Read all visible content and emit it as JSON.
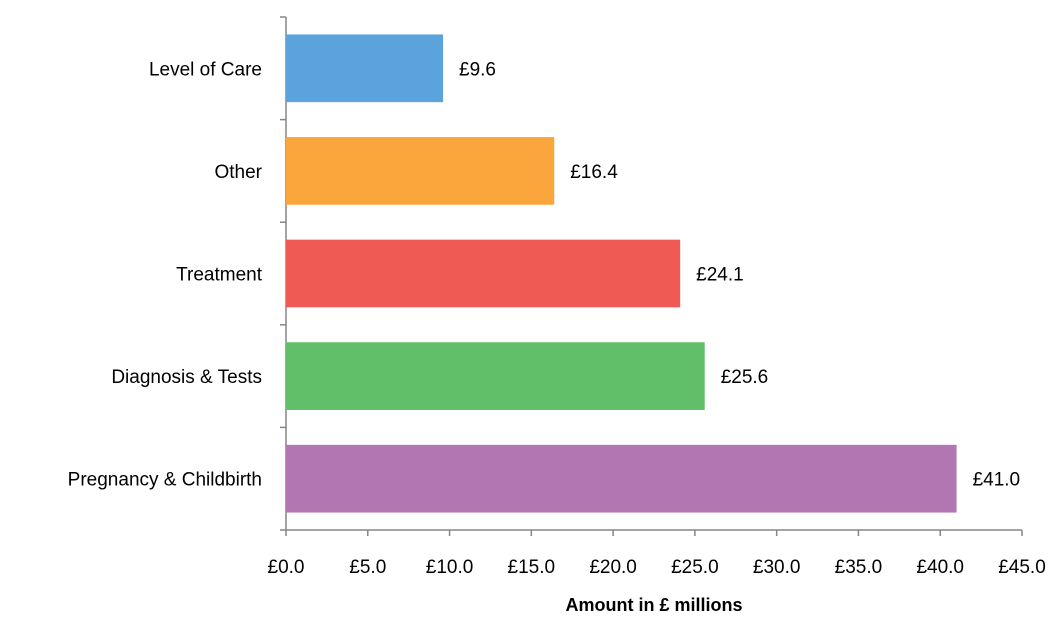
{
  "chart_data": {
    "type": "hbar",
    "categories": [
      "Level of Care",
      "Other",
      "Treatment",
      "Diagnosis & Tests",
      "Pregnancy & Childbirth"
    ],
    "values": [
      9.6,
      16.4,
      24.1,
      25.6,
      41.0
    ],
    "value_labels": [
      "£9.6",
      "£16.4",
      "£24.1",
      "£25.6",
      "£41.0"
    ],
    "colors": [
      "#5ba3dc",
      "#fba63c",
      "#f05a55",
      "#61be69",
      "#b276b2"
    ],
    "xlabel": "Amount in £ millions",
    "xlim": [
      0,
      45
    ],
    "xticks": [
      {
        "value": 0,
        "label": "£0.0"
      },
      {
        "value": 5,
        "label": "£5.0"
      },
      {
        "value": 10,
        "label": "£10.0"
      },
      {
        "value": 15,
        "label": "£15.0"
      },
      {
        "value": 20,
        "label": "£20.0"
      },
      {
        "value": 25,
        "label": "£25.0"
      },
      {
        "value": 30,
        "label": "£30.0"
      },
      {
        "value": 35,
        "label": "£35.0"
      },
      {
        "value": 40,
        "label": "£40.0"
      },
      {
        "value": 45,
        "label": "£45.0"
      }
    ],
    "grid": false
  }
}
